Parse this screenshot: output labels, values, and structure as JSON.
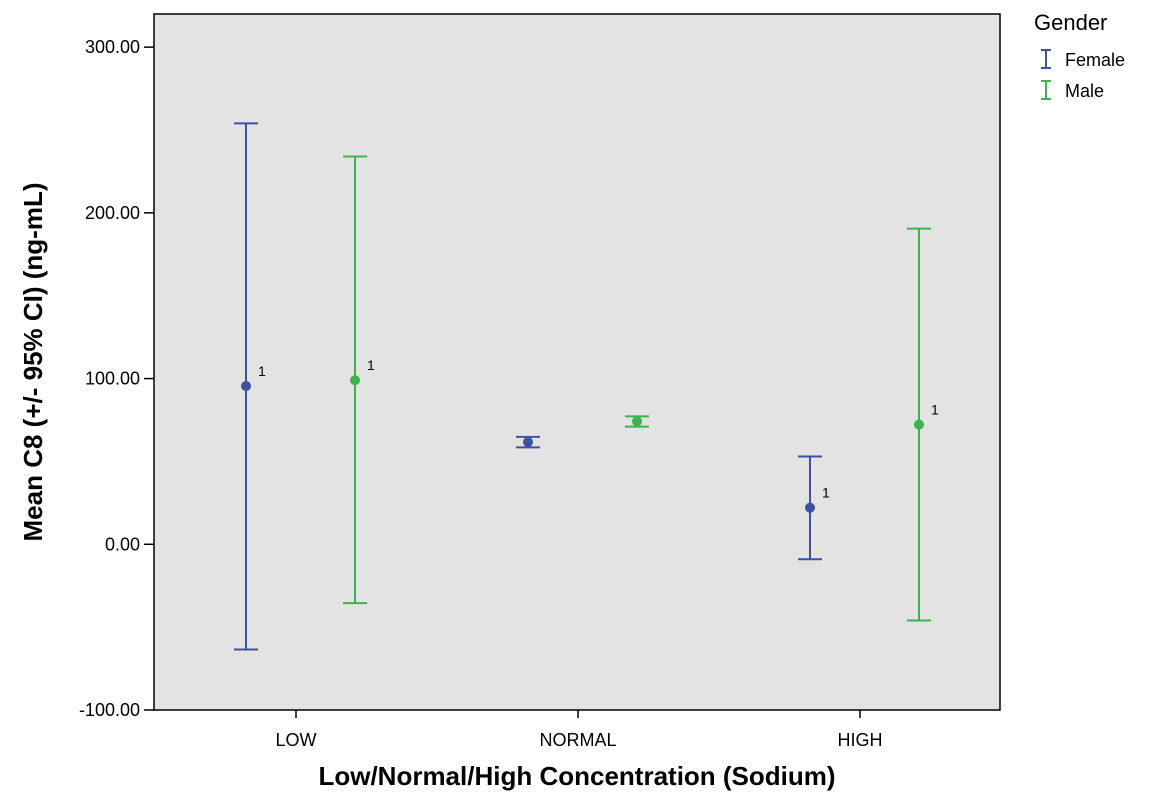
{
  "chart_data": {
    "type": "errorbar",
    "xlabel": "Low/Normal/High Concentration (Sodium)",
    "ylabel": "Mean C8 (+/- 95% CI) (ng-mL)",
    "categories": [
      "LOW",
      "NORMAL",
      "HIGH"
    ],
    "ylim": [
      -100,
      320
    ],
    "yticks": [
      "-100.00",
      "0.00",
      "100.00",
      "200.00",
      "300.00"
    ],
    "ytick_values": [
      -100,
      0,
      100,
      200,
      300
    ],
    "legend": {
      "title": "Gender",
      "position": "top-right outside"
    },
    "series": [
      {
        "name": "Female",
        "color": "#3d52a1",
        "means": [
          95.5,
          61.7,
          22.1
        ],
        "lower": [
          -63.5,
          58.5,
          -9
        ],
        "upper": [
          254,
          64.8,
          53
        ],
        "point_labels": [
          "1",
          "",
          "1"
        ]
      },
      {
        "name": "Male",
        "color": "#3cb44b",
        "means": [
          99,
          74.2,
          72.2
        ],
        "lower": [
          -35.5,
          71,
          -46
        ],
        "upper": [
          234,
          77.2,
          190.5
        ],
        "point_labels": [
          "1",
          "",
          "1"
        ]
      }
    ]
  }
}
